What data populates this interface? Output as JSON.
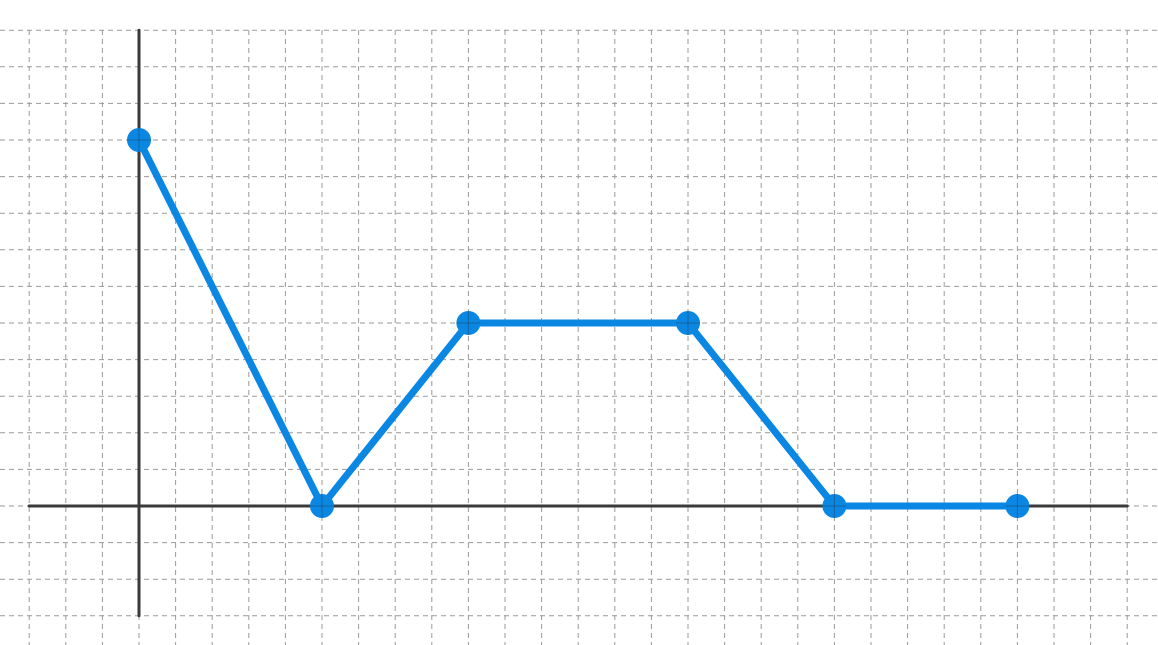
{
  "chart_data": {
    "type": "line",
    "title": "",
    "xlabel": "",
    "ylabel": "",
    "xlim": [
      -3,
      27
    ],
    "ylim": [
      -3,
      13
    ],
    "grid": true,
    "legend": "none",
    "series": [
      {
        "color": "#0a86e3",
        "points": [
          {
            "x": 0,
            "y": 10
          },
          {
            "x": 5,
            "y": 0
          },
          {
            "x": 9,
            "y": 5
          },
          {
            "x": 15,
            "y": 5
          },
          {
            "x": 19,
            "y": 0
          },
          {
            "x": 24,
            "y": 0
          }
        ]
      }
    ],
    "colors": {
      "grid": "#9a9a9a",
      "axis": "#3a3a3a",
      "line": "#0a86e3"
    }
  }
}
